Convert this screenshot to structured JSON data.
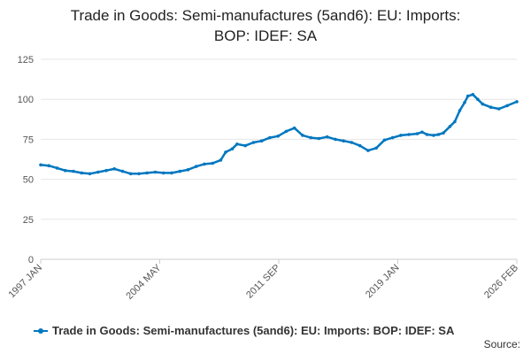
{
  "chart_data": {
    "type": "line",
    "title_lines": [
      "Trade in Goods: Semi-manufactures (5and6): EU: Imports:",
      "BOP: IDEF: SA"
    ],
    "ylim": [
      0,
      125
    ],
    "yticks": [
      "0",
      "25",
      "50",
      "75",
      "100",
      "125"
    ],
    "xtick_labels": [
      "1997 JAN",
      "2004 MAY",
      "2011 SEP",
      "2019 JAN",
      "2026 FEB"
    ],
    "x_range": [
      1997.0,
      2026.09
    ],
    "xlabel": "",
    "ylabel": "",
    "grid": true,
    "legend_position": "bottom",
    "series": [
      {
        "name": "Trade in Goods: Semi-manufactures (5and6): EU: Imports: BOP: IDEF: SA",
        "color": "#0077c0",
        "x": [
          1997.0,
          1997.5,
          1998.0,
          1998.5,
          1999.0,
          1999.5,
          2000.0,
          2000.5,
          2001.0,
          2001.5,
          2002.0,
          2002.5,
          2003.0,
          2003.5,
          2004.0,
          2004.5,
          2005.0,
          2005.5,
          2006.0,
          2006.5,
          2007.0,
          2007.5,
          2008.0,
          2008.3,
          2008.7,
          2009.0,
          2009.5,
          2010.0,
          2010.5,
          2011.0,
          2011.5,
          2012.0,
          2012.5,
          2013.0,
          2013.5,
          2014.0,
          2014.5,
          2015.0,
          2015.5,
          2016.0,
          2016.5,
          2017.0,
          2017.5,
          2018.0,
          2018.5,
          2019.0,
          2019.5,
          2020.0,
          2020.3,
          2020.6,
          2021.0,
          2021.3,
          2021.6,
          2022.0,
          2022.3,
          2022.6,
          2022.9,
          2023.1,
          2023.4,
          2023.7,
          2024.0,
          2024.5,
          2025.0,
          2025.5,
          2026.09
        ],
        "values": [
          59,
          58.5,
          57,
          55.5,
          55,
          54,
          53.5,
          54.5,
          55.5,
          56.5,
          55,
          53.5,
          53.5,
          54,
          54.5,
          54,
          54,
          55,
          56,
          58,
          59.5,
          60,
          62,
          67,
          69,
          72,
          71,
          73,
          74,
          76,
          77,
          80,
          82,
          77.5,
          76,
          75.5,
          76.5,
          75,
          74,
          73,
          71,
          68,
          69.5,
          74.5,
          76,
          77.5,
          78,
          78.5,
          79.5,
          78,
          77.5,
          78,
          79,
          83,
          86,
          93,
          98,
          102,
          103,
          100,
          97,
          95,
          94,
          96,
          98.5
        ]
      }
    ]
  },
  "legend": {
    "label": "Trade in Goods: Semi-manufactures (5and6): EU: Imports: BOP: IDEF: SA"
  },
  "footer": {
    "source_label": "Source:"
  }
}
